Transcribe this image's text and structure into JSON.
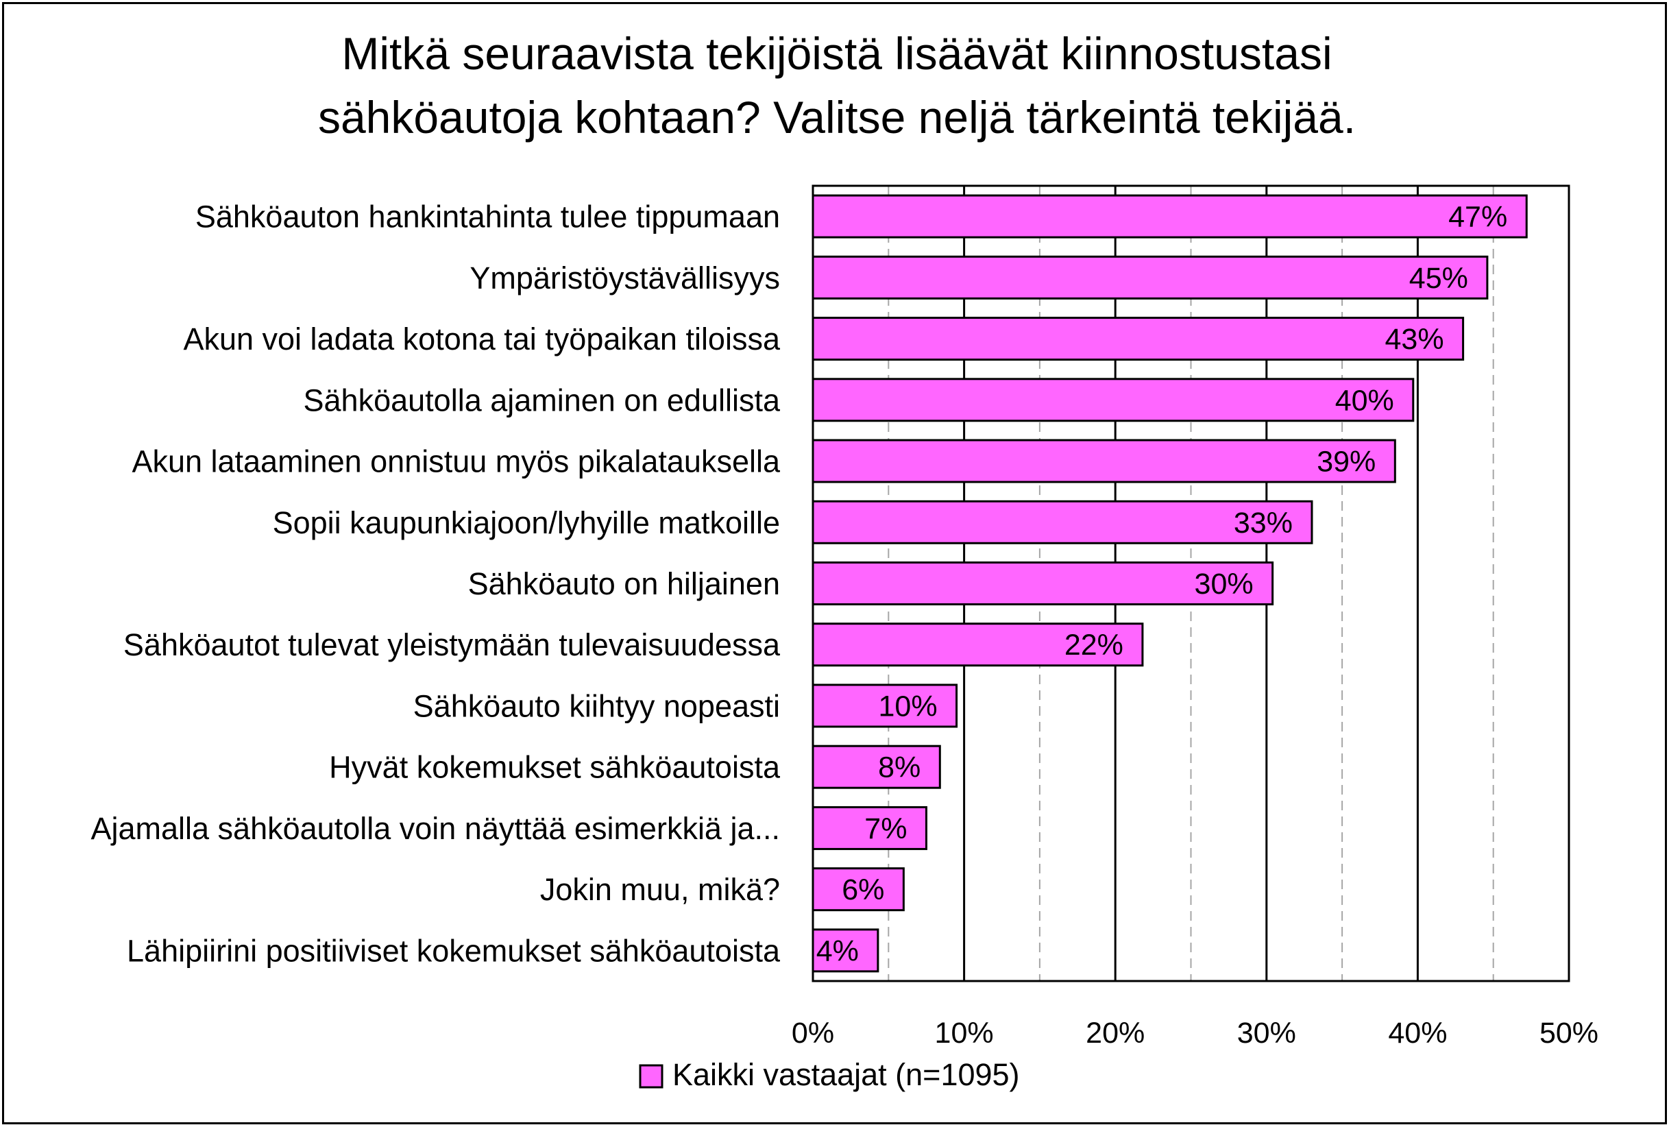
{
  "chart_data": {
    "type": "bar",
    "orientation": "horizontal",
    "title": "Mitkä seuraavista tekijöistä  lisäävät kiinnostustasi sähköautoja kohtaan? Valitse neljä tärkeintä tekijää.",
    "title_lines": [
      "Mitkä seuraavista tekijöistä  lisäävät kiinnostustasi",
      "sähköautoja kohtaan? Valitse neljä tärkeintä tekijää."
    ],
    "categories": [
      "Sähköauton hankintahinta tulee tippumaan",
      "Ympäristöystävällisyys",
      "Akun voi ladata kotona tai työpaikan tiloissa",
      "Sähköautolla ajaminen on edullista",
      "Akun lataaminen onnistuu myös pikalatauksella",
      "Sopii kaupunkiajoon/lyhyille matkoille",
      "Sähköauto on hiljainen",
      "Sähköautot tulevat yleistymään tulevaisuudessa",
      "Sähköauto kiihtyy nopeasti",
      "Hyvät kokemukset sähköautoista",
      "Ajamalla sähköautolla voin näyttää esimerkkiä ja...",
      "Jokin muu, mikä?",
      "Lähipiirini positiiviset kokemukset sähköautoista"
    ],
    "series": [
      {
        "name": "Kaikki vastaajat (n=1095)",
        "color": "#ff66ff",
        "values": [
          47.2,
          44.6,
          43.0,
          39.7,
          38.5,
          33.0,
          30.4,
          21.8,
          9.5,
          8.4,
          7.5,
          6.0,
          4.3
        ],
        "labels": [
          "47%",
          "45%",
          "43%",
          "40%",
          "39%",
          "33%",
          "30%",
          "22%",
          "10%",
          "8%",
          "7%",
          "6%",
          "4%"
        ]
      }
    ],
    "xlim": [
      0,
      50
    ],
    "xticks": [
      "0%",
      "10%",
      "20%",
      "30%",
      "40%",
      "50%"
    ],
    "xlabel": "",
    "ylabel": "",
    "grid": {
      "major_every": 10,
      "minor_every": 5,
      "major_color": "#000000",
      "minor_color": "#a6a6a6"
    },
    "legend": {
      "position": "bottom",
      "entries": [
        "Kaikki vastaajat (n=1095)"
      ]
    }
  }
}
